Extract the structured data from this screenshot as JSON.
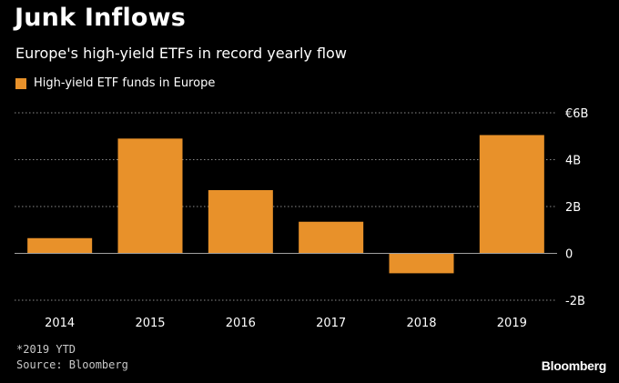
{
  "header": {
    "title": "Junk Inflows",
    "subtitle": "Europe's high-yield ETFs in record yearly flow"
  },
  "legend": {
    "label": "High-yield ETF funds in Europe",
    "color": "#e8912a"
  },
  "footer": {
    "footnote": "*2019 YTD",
    "source": "Source: Bloomberg",
    "brand": "Bloomberg"
  },
  "colors": {
    "background": "#000000",
    "bar": "#e8912a",
    "gridline": "#8a8a8a",
    "zero_line": "#a0a0a0",
    "text": "#ffffff",
    "muted_text": "#c8c8c8"
  },
  "chart_data": {
    "type": "bar",
    "title": "Junk Inflows",
    "subtitle": "Europe's high-yield ETFs in record yearly flow",
    "categories": [
      "2014",
      "2015",
      "2016",
      "2017",
      "2018",
      "2019"
    ],
    "series": [
      {
        "name": "High-yield ETF funds in Europe",
        "values": [
          0.65,
          4.9,
          2.7,
          1.35,
          -0.85,
          5.05
        ]
      }
    ],
    "ylim": [
      -2,
      6
    ],
    "yticks": [
      -2,
      0,
      2,
      4,
      6
    ],
    "ytick_labels": [
      "-2B",
      "0",
      "2B",
      "4B",
      "€6B"
    ],
    "xlabel": "",
    "ylabel": "",
    "grid": true,
    "legend_position": "top-left"
  }
}
